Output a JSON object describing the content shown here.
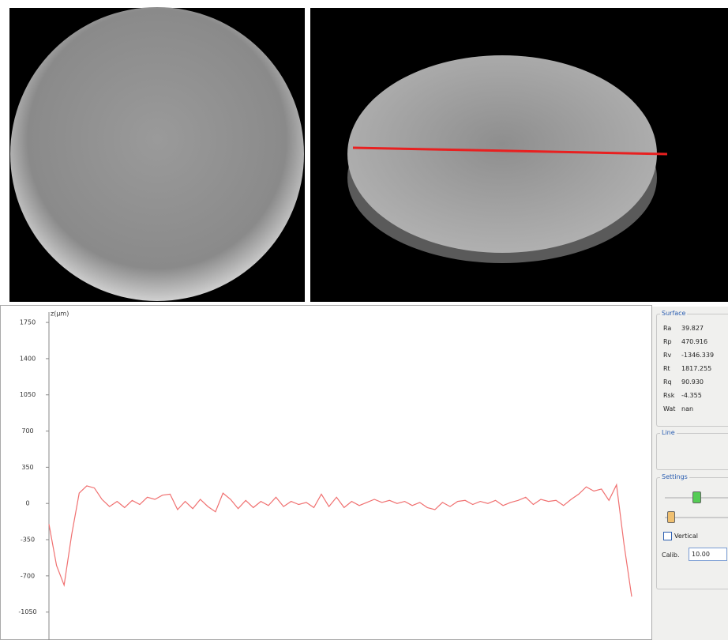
{
  "chart_data": {
    "type": "line",
    "y_label": "z(µm)",
    "color": "#f07070",
    "values": [
      -200,
      -600,
      -790,
      -300,
      100,
      170,
      150,
      40,
      -30,
      20,
      -40,
      30,
      -10,
      60,
      40,
      80,
      90,
      -60,
      20,
      -50,
      40,
      -30,
      -80,
      100,
      40,
      -50,
      30,
      -40,
      20,
      -20,
      60,
      -30,
      20,
      -10,
      10,
      -40,
      90,
      -30,
      60,
      -40,
      20,
      -20,
      10,
      40,
      10,
      30,
      0,
      20,
      -20,
      10,
      -40,
      -60,
      10,
      -30,
      20,
      30,
      -10,
      20,
      0,
      30,
      -20,
      10,
      30,
      60,
      -10,
      40,
      20,
      30,
      -20,
      40,
      90,
      160,
      120,
      140,
      30,
      180,
      -400,
      -900
    ],
    "ylim": [
      -1320,
      1850
    ],
    "yticks": [
      1750,
      1400,
      1050,
      700,
      350,
      0,
      -350,
      -700,
      -1050
    ]
  },
  "panel": {
    "surface": {
      "title": "Surface",
      "rows": [
        [
          "Ra",
          "39.827"
        ],
        [
          "Rp",
          "470.916"
        ],
        [
          "Rv",
          "-1346.339"
        ],
        [
          "Rt",
          "1817.255"
        ],
        [
          "Rq",
          "90.930"
        ],
        [
          "Rsk",
          "-4.355"
        ],
        [
          "Wat",
          "nan"
        ]
      ]
    },
    "line": {
      "title": "Line"
    },
    "settings": {
      "title": "Settings",
      "vertical": "Vertical",
      "calib_label": "Calib.",
      "calib_value": "10.00"
    }
  }
}
